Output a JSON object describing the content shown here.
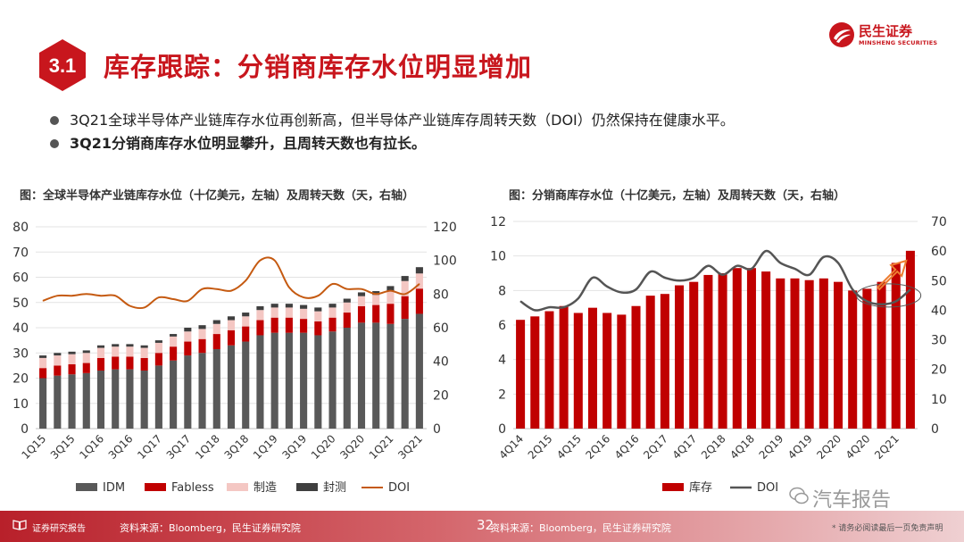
{
  "header": {
    "section_number": "3.1",
    "title": "库存跟踪：分销商库存水位明显增加",
    "logo_cn": "民生证券",
    "logo_en": "MINSHENG SECURITIES"
  },
  "bullets": [
    "3Q21全球半导体产业链库存水位再创新高，但半导体产业链库存周转天数（DOI）仍然保持在健康水平。",
    "3Q21分销商库存水位明显攀升，且周转天数也有拉长。"
  ],
  "colors": {
    "brand_red": "#c8161d",
    "idm": "#595959",
    "fabless": "#c00000",
    "foundry": "#f4c7c3",
    "osat": "#3f3f3f",
    "doi_left": "#c55a11",
    "inventory": "#c00000",
    "doi_right": "#555555",
    "arrow": "#ed7d31"
  },
  "footer": {
    "report_label": "证券研究报告",
    "source": "资料来源：Bloomberg，民生证券研究院",
    "page": "32",
    "source2": "资料来源：Bloomberg，民生证券研究院",
    "disclaimer": "* 请务必阅读最后一页免责声明"
  },
  "watermark": "汽车报告",
  "chart_data": [
    {
      "type": "bar",
      "stacked": true,
      "title": "图：全球半导体产业链库存水位（十亿美元，左轴）及周转天数（天，右轴）",
      "categories": [
        "1Q15",
        "2Q15",
        "3Q15",
        "4Q15",
        "1Q16",
        "2Q16",
        "3Q16",
        "4Q16",
        "1Q17",
        "2Q17",
        "3Q17",
        "4Q17",
        "1Q18",
        "2Q18",
        "3Q18",
        "4Q18",
        "1Q19",
        "2Q19",
        "3Q19",
        "4Q19",
        "1Q20",
        "2Q20",
        "3Q20",
        "4Q20",
        "1Q21",
        "2Q21",
        "3Q21"
      ],
      "tick_labels": [
        "1Q15",
        "3Q15",
        "1Q16",
        "3Q16",
        "1Q17",
        "3Q17",
        "1Q18",
        "3Q18",
        "1Q19",
        "3Q19",
        "1Q20",
        "3Q20",
        "1Q21",
        "3Q21"
      ],
      "ylim": [
        0,
        80
      ],
      "yticks": [
        0,
        10,
        20,
        30,
        40,
        50,
        60,
        70,
        80
      ],
      "y2lim": [
        0,
        120
      ],
      "y2ticks": [
        0,
        20,
        40,
        60,
        80,
        100,
        120
      ],
      "series": [
        {
          "name": "IDM",
          "values": [
            20,
            21,
            21.5,
            22,
            23,
            23.5,
            23.5,
            23,
            25,
            27,
            29,
            30,
            31.5,
            33,
            34.5,
            37,
            38,
            38,
            38,
            37,
            38.5,
            40,
            42,
            42,
            41.5,
            43.5,
            45.5
          ]
        },
        {
          "name": "Fabless",
          "values": [
            4,
            4,
            4,
            4,
            5,
            5,
            5,
            5,
            5,
            5.5,
            5.5,
            5.5,
            6,
            6,
            6,
            6,
            6,
            6,
            5.5,
            5.5,
            5.5,
            6,
            6.5,
            7,
            8,
            9,
            10
          ]
        },
        {
          "name": "制造",
          "values": [
            4,
            4,
            4,
            4,
            4,
            4,
            4,
            4,
            4,
            4,
            4,
            4,
            4,
            4,
            4,
            4,
            4,
            4,
            4,
            4,
            4,
            4,
            4,
            4,
            5,
            6,
            6
          ]
        },
        {
          "name": "封测",
          "values": [
            1,
            1,
            1,
            1,
            1,
            1,
            1,
            1,
            1,
            1,
            1.5,
            1.5,
            1.5,
            1.5,
            1.5,
            1.5,
            1.5,
            1.5,
            1.5,
            1.5,
            1.5,
            1.5,
            1.5,
            1.5,
            2,
            2,
            2.5
          ]
        },
        {
          "name": "DOI",
          "axis": "right",
          "values": [
            76,
            79,
            79,
            80,
            79,
            79,
            73,
            72,
            78,
            77,
            76,
            83,
            83,
            82,
            88,
            100,
            100,
            84,
            78,
            79,
            86,
            83,
            83,
            80,
            82,
            80,
            86
          ]
        }
      ]
    },
    {
      "type": "bar",
      "title": "图：分销商库存水位（十亿美元，左轴）及周转天数（天，右轴）",
      "categories": [
        "4Q14",
        "1Q15",
        "2Q15",
        "3Q15",
        "4Q15",
        "1Q16",
        "2Q16",
        "3Q16",
        "4Q16",
        "1Q17",
        "2Q17",
        "3Q17",
        "4Q17",
        "1Q18",
        "2Q18",
        "3Q18",
        "4Q18",
        "1Q19",
        "2Q19",
        "3Q19",
        "4Q19",
        "1Q20",
        "2Q20",
        "3Q20",
        "4Q20",
        "1Q21",
        "2Q21",
        "3Q21"
      ],
      "tick_labels": [
        "4Q14",
        "2Q15",
        "4Q15",
        "2Q16",
        "4Q16",
        "2Q17",
        "4Q17",
        "2Q18",
        "4Q18",
        "2Q19",
        "4Q19",
        "2Q20",
        "4Q20",
        "2Q21"
      ],
      "ylim": [
        0,
        12
      ],
      "yticks": [
        0,
        2,
        4,
        6,
        8,
        10,
        12
      ],
      "y2lim": [
        0,
        70
      ],
      "y2ticks": [
        0,
        10,
        20,
        30,
        40,
        50,
        60,
        70
      ],
      "series": [
        {
          "name": "库存",
          "values": [
            6.3,
            6.5,
            6.8,
            7.1,
            6.7,
            7.0,
            6.7,
            6.6,
            7.1,
            7.7,
            7.8,
            8.3,
            8.5,
            8.9,
            9.0,
            9.3,
            9.3,
            9.1,
            8.7,
            8.7,
            8.6,
            8.7,
            8.5,
            8.0,
            8.1,
            8.5,
            9.6,
            10.3
          ]
        },
        {
          "name": "DOI",
          "axis": "right",
          "values": [
            43,
            40,
            41,
            41,
            44,
            51,
            48,
            46,
            47,
            53,
            51,
            50,
            51,
            55,
            52,
            55,
            54,
            60,
            56,
            54,
            52,
            58,
            56,
            47,
            43,
            42,
            43,
            47
          ]
        }
      ]
    }
  ]
}
